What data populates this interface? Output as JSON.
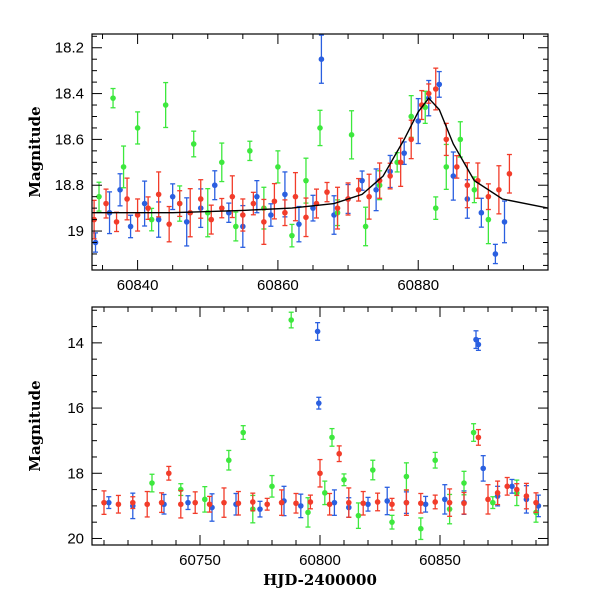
{
  "chart_data": [
    {
      "type": "scatter",
      "title": "",
      "xlabel": "",
      "ylabel": "Magnitude",
      "xlim": [
        60833.5,
        60898.5
      ],
      "ylim": [
        19.17,
        18.14
      ],
      "y_inverted": true,
      "x_ticks": [
        60840,
        60860,
        60880
      ],
      "y_ticks": [
        18.2,
        18.4,
        18.6,
        18.8,
        19
      ],
      "y_tick_labels": [
        "18.2",
        "18.4",
        "18.6",
        "18.8",
        "19"
      ],
      "grid": false,
      "model_curve": {
        "color": "#000000",
        "x": [
          60833.5,
          60845,
          60855,
          60862,
          60868,
          60872,
          60875,
          60878,
          60880,
          60881.5,
          60883,
          60885,
          60888,
          60892,
          60898.5
        ],
        "y": [
          18.92,
          18.92,
          18.91,
          18.9,
          18.88,
          18.84,
          18.76,
          18.6,
          18.48,
          18.42,
          18.47,
          18.62,
          18.78,
          18.86,
          18.9
        ]
      },
      "series": [
        {
          "color": "#2a5fe0",
          "x": [
            60834,
            60836,
            60837.5,
            60839,
            60841,
            60843,
            60845,
            60847,
            60849,
            60851,
            60853,
            60855,
            60857,
            60859,
            60861,
            60863,
            60865,
            60866.2,
            60868,
            60870,
            60872,
            60874,
            60876,
            60878,
            60880,
            60881.5,
            60883,
            60885,
            60887,
            60889,
            60891,
            60892.3
          ],
          "y": [
            19.05,
            18.92,
            18.82,
            18.98,
            18.88,
            18.95,
            18.85,
            18.96,
            18.9,
            18.8,
            18.92,
            18.98,
            18.85,
            18.93,
            18.84,
            18.97,
            18.9,
            18.25,
            18.93,
            18.86,
            18.78,
            18.82,
            18.74,
            18.66,
            18.52,
            18.42,
            18.36,
            18.76,
            18.86,
            18.92,
            19.1,
            18.96
          ]
        },
        {
          "color": "#3de83d",
          "x": [
            60834.5,
            60836.5,
            60838,
            60840,
            60842,
            60844,
            60846,
            60848,
            60850,
            60852,
            60854,
            60856,
            60858,
            60860,
            60862,
            60864,
            60866,
            60868.5,
            60870.5,
            60872.5,
            60874.5,
            60877,
            60879,
            60881,
            60882.5,
            60884,
            60886,
            60888,
            60890
          ],
          "y": [
            18.85,
            18.42,
            18.72,
            18.55,
            18.95,
            18.45,
            18.88,
            18.62,
            18.92,
            18.7,
            18.98,
            18.65,
            18.9,
            18.72,
            19.02,
            18.78,
            18.55,
            18.92,
            18.58,
            18.98,
            18.8,
            18.7,
            18.5,
            18.46,
            18.9,
            18.72,
            18.6,
            18.82,
            18.95
          ]
        },
        {
          "color": "#f23c2a",
          "x": [
            60833.8,
            60835.5,
            60837,
            60838.5,
            60840,
            60841.5,
            60843,
            60844.5,
            60846,
            60847.5,
            60849,
            60850.5,
            60852,
            60853.5,
            60855,
            60856.5,
            60858,
            60859.5,
            60861,
            60862.5,
            60864,
            60865.5,
            60867,
            60868.5,
            60870,
            60871.5,
            60873,
            60874.5,
            60876,
            60877.5,
            60879,
            60880.5,
            60881.5,
            60882.5,
            60884,
            60885.5,
            60887,
            60888.5,
            60890,
            60891.5,
            60893
          ],
          "y": [
            18.95,
            18.88,
            18.96,
            18.86,
            18.93,
            18.9,
            18.84,
            18.97,
            18.88,
            18.92,
            18.86,
            18.95,
            18.9,
            18.85,
            18.93,
            18.88,
            18.96,
            18.87,
            18.92,
            18.85,
            18.94,
            18.88,
            18.83,
            18.9,
            18.86,
            18.82,
            18.85,
            18.78,
            18.76,
            18.7,
            18.6,
            18.45,
            18.4,
            18.38,
            18.6,
            18.72,
            18.8,
            18.78,
            18.85,
            18.82,
            18.75
          ]
        }
      ]
    },
    {
      "type": "scatter",
      "title": "",
      "xlabel": "HJD-2400000",
      "ylabel": "Magnitude",
      "xlim": [
        60705,
        60895
      ],
      "ylim": [
        20.2,
        12.9
      ],
      "y_inverted": true,
      "x_ticks": [
        60750,
        60800,
        60850
      ],
      "y_ticks": [
        14,
        16,
        18,
        20
      ],
      "y_tick_labels": [
        "14",
        "16",
        "18",
        "20"
      ],
      "grid": false,
      "series": [
        {
          "color": "#2a5fe0",
          "x": [
            60712,
            60722,
            60735,
            60745,
            60755,
            60765,
            60775,
            60785,
            60792,
            60799,
            60799.5,
            60806,
            60812,
            60820,
            60828,
            60836,
            60844,
            60852,
            60860,
            60865,
            60866,
            60868,
            60874,
            60880,
            60886,
            60891
          ],
          "y": [
            18.9,
            19.0,
            18.95,
            18.9,
            19.05,
            18.95,
            19.1,
            18.85,
            19.0,
            13.65,
            15.85,
            18.9,
            19.05,
            18.95,
            18.85,
            18.9,
            18.95,
            18.8,
            18.9,
            13.9,
            14.05,
            17.85,
            18.7,
            18.4,
            18.8,
            19.0
          ]
        },
        {
          "color": "#3de83d",
          "x": [
            60730,
            60742,
            60752,
            60762,
            60768,
            60772,
            60780,
            60788,
            60795,
            60802,
            60805,
            60810,
            60816,
            60822,
            60830,
            60836,
            60842,
            60848,
            60854,
            60860,
            60864,
            60872,
            60882,
            60890
          ],
          "y": [
            18.3,
            18.5,
            18.8,
            17.6,
            16.75,
            19.1,
            18.4,
            13.3,
            19.2,
            18.6,
            16.9,
            18.2,
            19.3,
            17.9,
            19.5,
            18.1,
            19.7,
            17.6,
            19.1,
            18.3,
            16.75,
            18.9,
            18.6,
            19.2
          ]
        },
        {
          "color": "#f23c2a",
          "x": [
            60710,
            60716,
            60722,
            60728,
            60734,
            60737,
            60742,
            60748,
            60754,
            60760,
            60766,
            60772,
            60778,
            60784,
            60790,
            60796,
            60800,
            60804,
            60808,
            60812,
            60818,
            60824,
            60830,
            60836,
            60842,
            60848,
            60854,
            60860,
            60866,
            60870,
            60874,
            60878,
            60882,
            60886,
            60890
          ],
          "y": [
            18.9,
            18.95,
            18.9,
            18.95,
            18.9,
            18.0,
            18.95,
            18.9,
            18.95,
            18.9,
            18.92,
            18.88,
            18.95,
            18.9,
            18.92,
            18.88,
            18.0,
            18.95,
            17.4,
            18.9,
            18.92,
            18.88,
            18.95,
            18.9,
            18.92,
            18.88,
            18.9,
            18.92,
            16.9,
            18.8,
            18.6,
            18.4,
            18.5,
            18.7,
            18.9
          ]
        }
      ]
    }
  ]
}
